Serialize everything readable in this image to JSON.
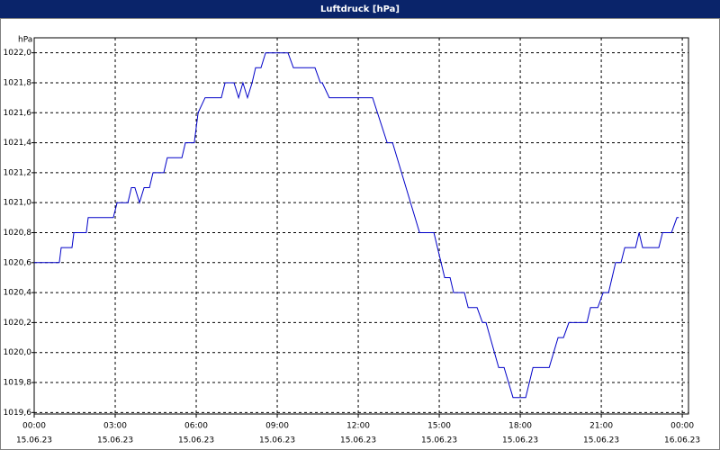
{
  "chart_data": {
    "type": "line",
    "title": "Luftdruck [hPa]",
    "y_label": "hPa",
    "x": [
      0,
      0.93,
      1.0,
      1.4,
      1.47,
      1.93,
      2.0,
      2.93,
      3.07,
      3.47,
      3.6,
      3.73,
      3.9,
      4.07,
      4.27,
      4.4,
      4.8,
      4.93,
      5.47,
      5.6,
      5.93,
      6.07,
      6.33,
      6.93,
      7.07,
      7.4,
      7.57,
      7.73,
      7.9,
      8.07,
      8.2,
      8.4,
      8.57,
      9.4,
      9.6,
      10.4,
      10.6,
      10.67,
      10.93,
      12.53,
      13.07,
      13.27,
      14.27,
      14.8,
      15.2,
      15.4,
      15.53,
      15.93,
      16.07,
      16.4,
      16.6,
      16.73,
      17.2,
      17.4,
      17.73,
      18.2,
      18.47,
      19.07,
      19.4,
      19.6,
      19.8,
      20.47,
      20.6,
      20.87,
      21.07,
      21.27,
      21.53,
      21.73,
      21.87,
      22.27,
      22.4,
      22.53,
      23.13,
      23.27,
      23.6,
      23.8,
      23.87
    ],
    "series": [
      {
        "name": "Luftdruck",
        "color": "#0000c8",
        "values": [
          1020.6,
          1020.6,
          1020.7,
          1020.7,
          1020.8,
          1020.8,
          1020.9,
          1020.9,
          1021.0,
          1021.0,
          1021.1,
          1021.1,
          1021.0,
          1021.1,
          1021.1,
          1021.2,
          1021.2,
          1021.3,
          1021.3,
          1021.4,
          1021.4,
          1021.6,
          1021.7,
          1021.7,
          1021.8,
          1021.8,
          1021.7,
          1021.8,
          1021.7,
          1021.8,
          1021.9,
          1021.9,
          1022.0,
          1022.0,
          1021.9,
          1021.9,
          1021.8,
          1021.8,
          1021.7,
          1021.7,
          1021.4,
          1021.4,
          1020.8,
          1020.8,
          1020.5,
          1020.5,
          1020.4,
          1020.4,
          1020.3,
          1020.3,
          1020.2,
          1020.2,
          1019.9,
          1019.9,
          1019.7,
          1019.7,
          1019.9,
          1019.9,
          1020.1,
          1020.1,
          1020.2,
          1020.2,
          1020.3,
          1020.3,
          1020.4,
          1020.4,
          1020.6,
          1020.6,
          1020.7,
          1020.7,
          1020.8,
          1020.7,
          1020.7,
          1020.8,
          1020.8,
          1020.9,
          1020.9
        ]
      }
    ],
    "xlim": [
      0,
      24.23
    ],
    "xticks": [
      {
        "value": 0,
        "label": [
          "00:00",
          "15.06.23"
        ]
      },
      {
        "value": 3,
        "label": [
          "03:00",
          "15.06.23"
        ]
      },
      {
        "value": 6,
        "label": [
          "06:00",
          "15.06.23"
        ]
      },
      {
        "value": 9,
        "label": [
          "09:00",
          "15.06.23"
        ]
      },
      {
        "value": 12,
        "label": [
          "12:00",
          "15.06.23"
        ]
      },
      {
        "value": 15,
        "label": [
          "15:00",
          "15.06.23"
        ]
      },
      {
        "value": 18,
        "label": [
          "18:00",
          "15.06.23"
        ]
      },
      {
        "value": 21,
        "label": [
          "21:00",
          "15.06.23"
        ]
      },
      {
        "value": 24,
        "label": [
          "00:00",
          "16.06.23"
        ]
      }
    ],
    "ylim": [
      1019.59,
      1022.1
    ],
    "yticks": [
      {
        "value": 1019.6,
        "label": "1019,6"
      },
      {
        "value": 1019.8,
        "label": "1019,8"
      },
      {
        "value": 1020.0,
        "label": "1020,0"
      },
      {
        "value": 1020.2,
        "label": "1020,2"
      },
      {
        "value": 1020.4,
        "label": "1020,4"
      },
      {
        "value": 1020.6,
        "label": "1020,6"
      },
      {
        "value": 1020.8,
        "label": "1020,8"
      },
      {
        "value": 1021.0,
        "label": "1021,0"
      },
      {
        "value": 1021.2,
        "label": "1021,2"
      },
      {
        "value": 1021.4,
        "label": "1021,4"
      },
      {
        "value": 1021.6,
        "label": "1021,6"
      },
      {
        "value": 1021.8,
        "label": "1021,8"
      },
      {
        "value": 1022.0,
        "label": "1022,0"
      }
    ],
    "grid": true
  }
}
